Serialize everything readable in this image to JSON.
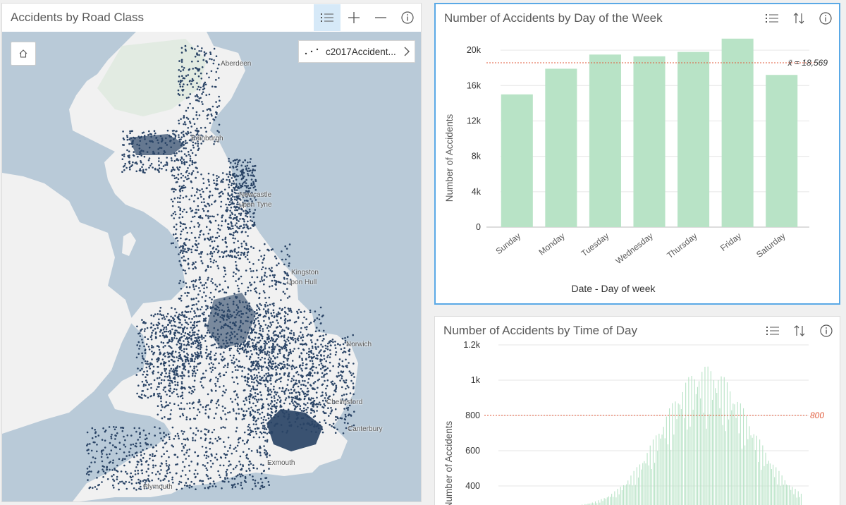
{
  "map_card": {
    "title": "Accidents by Road Class",
    "tools": [
      "legend-icon",
      "plus-icon",
      "minus-icon",
      "info-icon"
    ],
    "layer_label": "c2017Accident...",
    "labels": [
      "Aberdeen",
      "Edinburgh",
      "Newcastle",
      "upon Tyne",
      "Kingston",
      "upon Hull",
      "Norwich",
      "Chelmsford",
      "Canterbury",
      "Plymouth",
      "Exmouth"
    ]
  },
  "day_card": {
    "title": "Number of Accidents by Day of the Week",
    "tools": [
      "legend-icon",
      "sort-icon",
      "info-icon"
    ],
    "mean_label": "x̄ = 18,569"
  },
  "time_card": {
    "title": "Number of Accidents by Time of Day",
    "tools": [
      "legend-icon",
      "sort-icon",
      "info-icon"
    ],
    "ref_label": "800"
  },
  "chart_data": [
    {
      "type": "bar",
      "categories": [
        "Sunday",
        "Monday",
        "Tuesday",
        "Wednesday",
        "Thursday",
        "Friday",
        "Saturday"
      ],
      "values": [
        15000,
        17900,
        19500,
        19300,
        19800,
        21300,
        17200
      ],
      "xlabel": "Date - Day of week",
      "ylabel": "Number of Accidents",
      "ylim": [
        0,
        22000
      ],
      "yticks": [
        0,
        4000,
        8000,
        12000,
        16000,
        20000
      ],
      "ytick_labels": [
        "0",
        "4k",
        "8k",
        "12k",
        "16k",
        "20k"
      ],
      "mean": 18569,
      "color": "#b8e3c6",
      "mean_color": "#e05a3a"
    },
    {
      "type": "bar",
      "ylabel": "Number of Accidents",
      "yticks": [
        400,
        600,
        800,
        1000,
        1200
      ],
      "ytick_labels": [
        "400",
        "600",
        "800",
        "1k",
        "1.2k"
      ],
      "reference_line": 800,
      "color": "#b8e3c6",
      "mean_color": "#e05a3a"
    }
  ]
}
